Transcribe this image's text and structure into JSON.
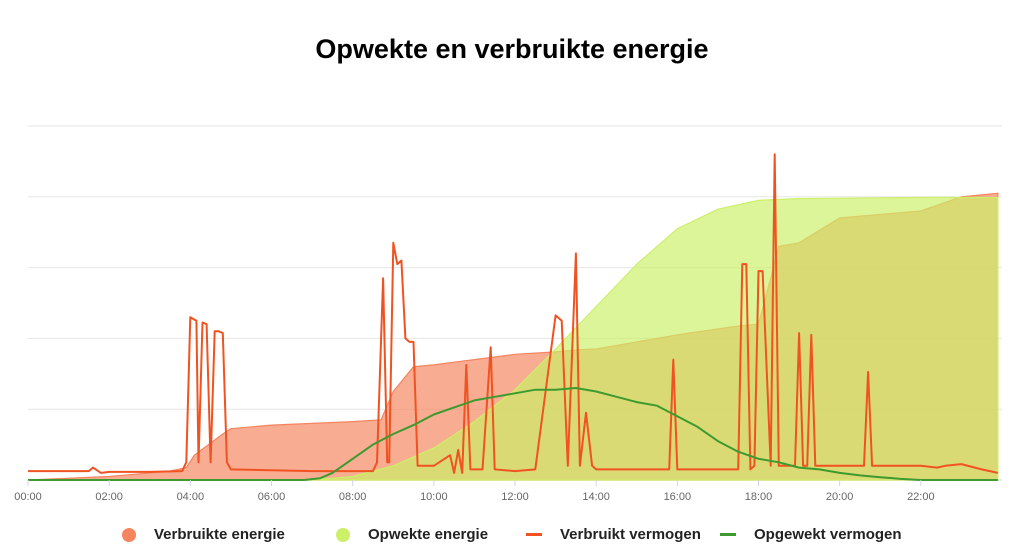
{
  "title": "Opwekte en verbruikte energie",
  "chart_data": {
    "type": "area",
    "x_unit": "hours",
    "xlim": [
      0,
      24
    ],
    "ylim": [
      0,
      100
    ],
    "x_ticks": [
      "00:00",
      "02:00",
      "04:00",
      "06:00",
      "08:00",
      "10:00",
      "12:00",
      "14:00",
      "16:00",
      "18:00",
      "20:00",
      "22:00"
    ],
    "grid": true,
    "legend_position": "bottom",
    "series": [
      {
        "name": "Verbruikte energie",
        "kind": "area",
        "color": "#f5845f",
        "points": [
          [
            0,
            0
          ],
          [
            2,
            1
          ],
          [
            3.5,
            2.5
          ],
          [
            3.9,
            3.5
          ],
          [
            4.1,
            7
          ],
          [
            4.8,
            13
          ],
          [
            5,
            14.5
          ],
          [
            6,
            15.5
          ],
          [
            8,
            16.5
          ],
          [
            8.7,
            17
          ],
          [
            9,
            25
          ],
          [
            9.5,
            32
          ],
          [
            10,
            32.5
          ],
          [
            11,
            34
          ],
          [
            12,
            35.5
          ],
          [
            13,
            36.2
          ],
          [
            13.6,
            36.8
          ],
          [
            14,
            37
          ],
          [
            16,
            41
          ],
          [
            17.5,
            43.5
          ],
          [
            18,
            44
          ],
          [
            18.3,
            57
          ],
          [
            18.5,
            66
          ],
          [
            19,
            67
          ],
          [
            20,
            74
          ],
          [
            22,
            76
          ],
          [
            23,
            80
          ],
          [
            23.9,
            81
          ]
        ]
      },
      {
        "name": "Opwekte energie",
        "kind": "area",
        "color": "#ccf067",
        "points": [
          [
            0,
            0
          ],
          [
            6.9,
            0
          ],
          [
            7.5,
            0.5
          ],
          [
            8,
            1
          ],
          [
            9,
            4
          ],
          [
            10,
            9
          ],
          [
            11,
            16.5
          ],
          [
            12,
            25.5
          ],
          [
            13,
            37
          ],
          [
            14,
            49
          ],
          [
            15,
            61
          ],
          [
            16,
            71
          ],
          [
            17,
            76.5
          ],
          [
            18,
            79
          ],
          [
            19,
            79.5
          ],
          [
            20,
            79.6
          ],
          [
            22,
            79.8
          ],
          [
            23.9,
            79.8
          ]
        ]
      },
      {
        "name": "Verbruikt vermogen",
        "kind": "line",
        "color": "#f05321",
        "points": [
          [
            0,
            2.5
          ],
          [
            1.5,
            2.5
          ],
          [
            1.6,
            3.5
          ],
          [
            1.8,
            2
          ],
          [
            2,
            2.3
          ],
          [
            3,
            2.3
          ],
          [
            3.8,
            2.5
          ],
          [
            3.9,
            5
          ],
          [
            4,
            46
          ],
          [
            4.15,
            45
          ],
          [
            4.2,
            5
          ],
          [
            4.3,
            44.5
          ],
          [
            4.4,
            44
          ],
          [
            4.5,
            5
          ],
          [
            4.6,
            42
          ],
          [
            4.7,
            42
          ],
          [
            4.8,
            41.5
          ],
          [
            4.9,
            5
          ],
          [
            5,
            3
          ],
          [
            7,
            2.5
          ],
          [
            8.5,
            2.5
          ],
          [
            8.6,
            5
          ],
          [
            8.75,
            57
          ],
          [
            8.85,
            5
          ],
          [
            8.9,
            5
          ],
          [
            9,
            67
          ],
          [
            9.1,
            61
          ],
          [
            9.2,
            62
          ],
          [
            9.3,
            40
          ],
          [
            9.4,
            39
          ],
          [
            9.5,
            39
          ],
          [
            9.6,
            4
          ],
          [
            10,
            4
          ],
          [
            10.4,
            7
          ],
          [
            10.5,
            2
          ],
          [
            10.6,
            8.5
          ],
          [
            10.7,
            2
          ],
          [
            10.8,
            32.5
          ],
          [
            10.9,
            3
          ],
          [
            11.2,
            3
          ],
          [
            11.4,
            37.5
          ],
          [
            11.5,
            3
          ],
          [
            12,
            2.5
          ],
          [
            12.5,
            3
          ],
          [
            13,
            46.5
          ],
          [
            13.15,
            45
          ],
          [
            13.3,
            4
          ],
          [
            13.5,
            64
          ],
          [
            13.6,
            4
          ],
          [
            13.75,
            19
          ],
          [
            13.9,
            4
          ],
          [
            14,
            3
          ],
          [
            15.8,
            3
          ],
          [
            15.9,
            34
          ],
          [
            16,
            3
          ],
          [
            17.5,
            3
          ],
          [
            17.6,
            61
          ],
          [
            17.7,
            61
          ],
          [
            17.8,
            3
          ],
          [
            17.9,
            4
          ],
          [
            18,
            59
          ],
          [
            18.1,
            59
          ],
          [
            18.3,
            4
          ],
          [
            18.4,
            92
          ],
          [
            18.5,
            4
          ],
          [
            18.9,
            4
          ],
          [
            19,
            41.5
          ],
          [
            19.1,
            4
          ],
          [
            19.2,
            4
          ],
          [
            19.3,
            41
          ],
          [
            19.4,
            4
          ],
          [
            20,
            4
          ],
          [
            20.6,
            4
          ],
          [
            20.7,
            30.5
          ],
          [
            20.8,
            4
          ],
          [
            22,
            4
          ],
          [
            22.4,
            3.5
          ],
          [
            22.6,
            4
          ],
          [
            23,
            4.5
          ],
          [
            23.5,
            3
          ],
          [
            23.9,
            2
          ]
        ]
      },
      {
        "name": "Opgewekt vermogen",
        "kind": "line",
        "color": "#3d9a2e",
        "points": [
          [
            0,
            0
          ],
          [
            6.8,
            0
          ],
          [
            7.2,
            0.5
          ],
          [
            7.5,
            2
          ],
          [
            8,
            6
          ],
          [
            8.5,
            10
          ],
          [
            9,
            13
          ],
          [
            9.5,
            15.5
          ],
          [
            10,
            18.5
          ],
          [
            10.5,
            20.5
          ],
          [
            11,
            22.5
          ],
          [
            11.5,
            23.5
          ],
          [
            12,
            24.5
          ],
          [
            12.5,
            25.5
          ],
          [
            13,
            25.5
          ],
          [
            13.5,
            26
          ],
          [
            14,
            25
          ],
          [
            14.5,
            23.5
          ],
          [
            15,
            22
          ],
          [
            15.5,
            21
          ],
          [
            16,
            18
          ],
          [
            16.5,
            15
          ],
          [
            17,
            11
          ],
          [
            17.5,
            8
          ],
          [
            18,
            6
          ],
          [
            18.5,
            5
          ],
          [
            19,
            3.5
          ],
          [
            19.5,
            3
          ],
          [
            20,
            2
          ],
          [
            20.5,
            1.3
          ],
          [
            21,
            0.8
          ],
          [
            21.5,
            0.3
          ],
          [
            22,
            0
          ],
          [
            23.9,
            0
          ]
        ]
      }
    ]
  },
  "legend": [
    {
      "label": "Verbruikte energie",
      "color": "#f5845f",
      "marker": "circle"
    },
    {
      "label": "Opwekte energie",
      "color": "#ccf067",
      "marker": "circle"
    },
    {
      "label": "Verbruikt vermogen",
      "color": "#f05321",
      "marker": "line"
    },
    {
      "label": "Opgewekt vermogen",
      "color": "#3d9a2e",
      "marker": "line"
    }
  ]
}
